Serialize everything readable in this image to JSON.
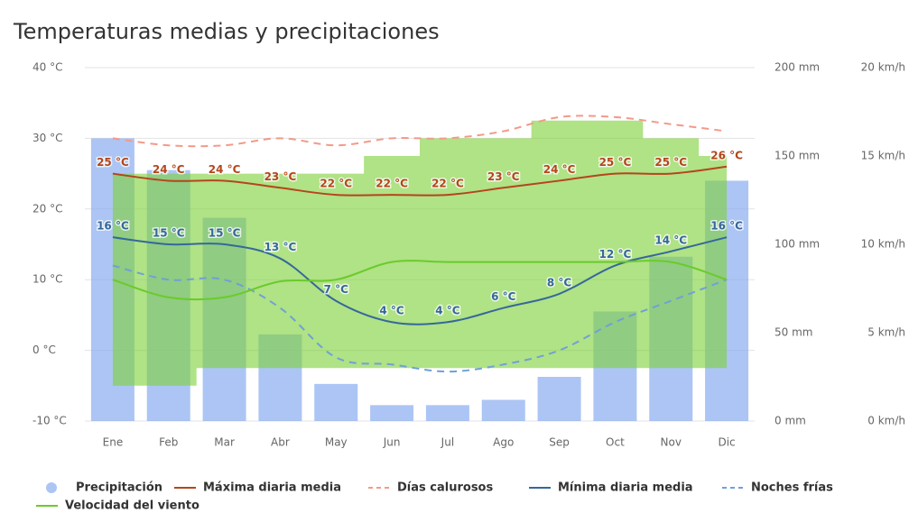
{
  "chart_data": {
    "type": "combo",
    "title": "Temperaturas medias y precipitaciones",
    "categories": [
      "Ene",
      "Feb",
      "Mar",
      "Abr",
      "May",
      "Jun",
      "Jul",
      "Ago",
      "Sep",
      "Oct",
      "Nov",
      "Dic"
    ],
    "ylim": [
      -10,
      40
    ],
    "yticks": [
      {
        "value": -10,
        "label": "-10 °C"
      },
      {
        "value": 0,
        "label": "0 °C"
      },
      {
        "value": 10,
        "label": "10 °C"
      },
      {
        "value": 20,
        "label": "20 °C"
      },
      {
        "value": 30,
        "label": "30 °C"
      },
      {
        "value": 40,
        "label": "40 °C"
      }
    ],
    "y2lim": [
      0,
      200
    ],
    "y2ticks": [
      {
        "value": 0,
        "label": "0 mm"
      },
      {
        "value": 50,
        "label": "50 mm"
      },
      {
        "value": 100,
        "label": "100 mm"
      },
      {
        "value": 150,
        "label": "150 mm"
      },
      {
        "value": 200,
        "label": "200 mm"
      }
    ],
    "y3lim": [
      0,
      20
    ],
    "y3ticks": [
      {
        "value": 0,
        "label": "0 km/h"
      },
      {
        "value": 5,
        "label": "5 km/h"
      },
      {
        "value": 10,
        "label": "10 km/h"
      },
      {
        "value": 15,
        "label": "15 km/h"
      },
      {
        "value": 20,
        "label": "20 km/h"
      }
    ],
    "grid": true,
    "band": {
      "axis": "y3",
      "color": "rgba(128,208,60,0.62)",
      "low": [
        2,
        2,
        3,
        3,
        3,
        3,
        3,
        3,
        3,
        3,
        3,
        3
      ],
      "high": [
        14,
        14,
        14,
        14,
        14,
        15,
        16,
        16,
        17,
        17,
        16,
        15
      ]
    },
    "series": [
      {
        "name": "Precipitación",
        "type": "bar",
        "axis": "y2",
        "color": "rgba(140,175,240,0.72)",
        "values": [
          160,
          142,
          115,
          49,
          21,
          9,
          9,
          12,
          25,
          62,
          93,
          136
        ]
      },
      {
        "name": "Máxima diaria media",
        "type": "line",
        "color": "#b5451b",
        "values": [
          25,
          24,
          24,
          23,
          22,
          22,
          22,
          23,
          24,
          25,
          25,
          26
        ],
        "value_labels": [
          "25 °C",
          "24 °C",
          "24 °C",
          "23 °C",
          "22 °C",
          "22 °C",
          "22 °C",
          "23 °C",
          "24 °C",
          "25 °C",
          "25 °C",
          "26 °C"
        ]
      },
      {
        "name": "Días calurosos",
        "type": "line",
        "dashed": true,
        "color": "#f39a88",
        "values": [
          30,
          29,
          29,
          30,
          29,
          30,
          30,
          31,
          33,
          33,
          32,
          31
        ]
      },
      {
        "name": "Mínima diaria media",
        "type": "line",
        "color": "#35689a",
        "values": [
          16,
          15,
          15,
          13,
          7,
          4,
          4,
          6,
          8,
          12,
          14,
          16
        ],
        "value_labels": [
          "16 °C",
          "15 °C",
          "15 °C",
          "13 °C",
          "7 °C",
          "4 °C",
          "4 °C",
          "6 °C",
          "8 °C",
          "12 °C",
          "14 °C",
          "16 °C"
        ]
      },
      {
        "name": "Noches frías",
        "type": "line",
        "dashed": true,
        "color": "#6fa0d8",
        "values": [
          12,
          10,
          10,
          6,
          -1,
          -2,
          -3,
          -2,
          0,
          4,
          7,
          10
        ]
      },
      {
        "name": "Velocidad del viento",
        "type": "line",
        "axis": "y3",
        "color": "#6acb2a",
        "values": [
          8,
          7,
          7,
          7.9,
          8,
          9,
          9,
          9,
          9,
          9,
          9,
          8
        ]
      }
    ]
  }
}
